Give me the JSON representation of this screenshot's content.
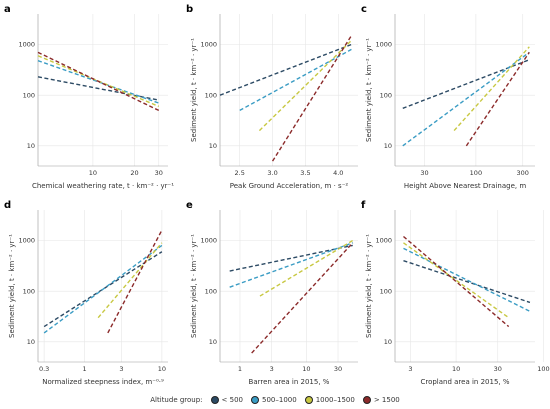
{
  "legend": {
    "title": "Altitude group:",
    "groups": [
      {
        "name": "< 500",
        "color": "#2c4a64"
      },
      {
        "name": "500–1000",
        "color": "#3a9cc4"
      },
      {
        "name": "1000–1500",
        "color": "#c8c842"
      },
      {
        "name": "> 1500",
        "color": "#8b2a2a"
      }
    ]
  },
  "chart_data": [
    {
      "panel": "a",
      "type": "scatter",
      "xlabel": "Chemical weathering rate, t · km⁻² · yr⁻¹",
      "ylabel": "",
      "xscale": "log",
      "yscale": "log",
      "xlim": [
        4,
        35
      ],
      "ylim": [
        4,
        4000
      ],
      "xticks": [
        10,
        20,
        30
      ],
      "yticks": [
        10,
        100,
        1000
      ],
      "trends": [
        {
          "group": "< 500",
          "x": [
            4,
            30
          ],
          "y": [
            230,
            80
          ]
        },
        {
          "group": "500–1000",
          "x": [
            4,
            30
          ],
          "y": [
            480,
            70
          ]
        },
        {
          "group": "1000–1500",
          "x": [
            4,
            30
          ],
          "y": [
            600,
            60
          ]
        },
        {
          "group": "> 1500",
          "x": [
            4,
            30
          ],
          "y": [
            700,
            50
          ]
        }
      ]
    },
    {
      "panel": "b",
      "type": "scatter",
      "xlabel": "Peak Ground Acceleration, m · s⁻²",
      "ylabel": "Sediment yield, t · km⁻² · yr⁻¹",
      "xscale": "linear",
      "yscale": "log",
      "xlim": [
        2.2,
        4.3
      ],
      "ylim": [
        4,
        4000
      ],
      "xticks": [
        2.5,
        3.0,
        3.5,
        4.0
      ],
      "yticks": [
        10,
        100,
        1000
      ],
      "trends": [
        {
          "group": "< 500",
          "x": [
            2.2,
            4.2
          ],
          "y": [
            100,
            1000
          ]
        },
        {
          "group": "500–1000",
          "x": [
            2.5,
            4.2
          ],
          "y": [
            50,
            800
          ]
        },
        {
          "group": "1000–1500",
          "x": [
            2.8,
            4.2
          ],
          "y": [
            20,
            1200
          ]
        },
        {
          "group": "> 1500",
          "x": [
            3.0,
            4.2
          ],
          "y": [
            5,
            1500
          ]
        }
      ]
    },
    {
      "panel": "c",
      "type": "scatter",
      "xlabel": "Height Above Nearest Drainage, m",
      "ylabel": "Sediment yield, t · km⁻² · yr⁻¹",
      "xscale": "log",
      "yscale": "log",
      "xlim": [
        15,
        400
      ],
      "ylim": [
        4,
        4000
      ],
      "xticks": [
        30,
        100,
        300
      ],
      "yticks": [
        10,
        100,
        1000
      ],
      "trends": [
        {
          "group": "< 500",
          "x": [
            18,
            350
          ],
          "y": [
            55,
            500
          ]
        },
        {
          "group": "500–1000",
          "x": [
            18,
            350
          ],
          "y": [
            10,
            700
          ]
        },
        {
          "group": "1000–1500",
          "x": [
            60,
            350
          ],
          "y": [
            20,
            900
          ]
        },
        {
          "group": "> 1500",
          "x": [
            80,
            350
          ],
          "y": [
            10,
            700
          ]
        }
      ]
    },
    {
      "panel": "d",
      "type": "scatter",
      "xlabel": "Normalized steepness index, m⁻⁰·⁹",
      "ylabel": "Sediment yield, t · km⁻² · yr⁻¹",
      "xscale": "log",
      "yscale": "log",
      "xlim": [
        0.25,
        12
      ],
      "ylim": [
        4,
        4000
      ],
      "xticks": [
        0.3,
        1,
        3,
        10
      ],
      "yticks": [
        10,
        100,
        1000
      ],
      "trends": [
        {
          "group": "< 500",
          "x": [
            0.3,
            10
          ],
          "y": [
            20,
            600
          ]
        },
        {
          "group": "500–1000",
          "x": [
            0.3,
            10
          ],
          "y": [
            15,
            800
          ]
        },
        {
          "group": "1000–1500",
          "x": [
            1.5,
            10
          ],
          "y": [
            30,
            900
          ]
        },
        {
          "group": "> 1500",
          "x": [
            2,
            10
          ],
          "y": [
            15,
            1600
          ]
        }
      ]
    },
    {
      "panel": "e",
      "type": "scatter",
      "xlabel": "Barren area in 2015, %",
      "ylabel": "Sediment yield, t · km⁻² · yr⁻¹",
      "xscale": "log",
      "yscale": "log",
      "xlim": [
        0.5,
        60
      ],
      "ylim": [
        4,
        4000
      ],
      "xticks": [
        1,
        3,
        10,
        30
      ],
      "yticks": [
        10,
        100,
        1000
      ],
      "trends": [
        {
          "group": "< 500",
          "x": [
            0.7,
            50
          ],
          "y": [
            250,
            800
          ]
        },
        {
          "group": "500–1000",
          "x": [
            0.7,
            50
          ],
          "y": [
            120,
            900
          ]
        },
        {
          "group": "1000–1500",
          "x": [
            2,
            50
          ],
          "y": [
            80,
            1000
          ]
        },
        {
          "group": "> 1500",
          "x": [
            1.5,
            50
          ],
          "y": [
            6,
            900
          ]
        }
      ]
    },
    {
      "panel": "f",
      "type": "scatter",
      "xlabel": "Cropland area in 2015, %",
      "ylabel": "Sediment yield, t · km⁻² · yr⁻¹",
      "xscale": "log",
      "yscale": "log",
      "xlim": [
        2,
        80
      ],
      "ylim": [
        4,
        4000
      ],
      "xticks": [
        3,
        10,
        30,
        100
      ],
      "yticks": [
        10,
        100,
        1000
      ],
      "trends": [
        {
          "group": "< 500",
          "x": [
            2.5,
            70
          ],
          "y": [
            400,
            60
          ]
        },
        {
          "group": "500–1000",
          "x": [
            2.5,
            70
          ],
          "y": [
            700,
            40
          ]
        },
        {
          "group": "1000–1500",
          "x": [
            2.5,
            40
          ],
          "y": [
            900,
            30
          ]
        },
        {
          "group": "> 1500",
          "x": [
            2.5,
            40
          ],
          "y": [
            1200,
            20
          ]
        }
      ]
    }
  ]
}
